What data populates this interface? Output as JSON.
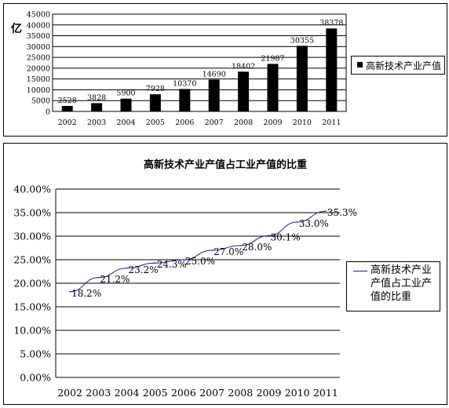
{
  "chart_data": [
    {
      "type": "bar",
      "title": "",
      "ylabel": "亿",
      "categories": [
        "2002",
        "2003",
        "2004",
        "2005",
        "2006",
        "2007",
        "2008",
        "2009",
        "2010",
        "2011"
      ],
      "series": [
        {
          "name": "高新技术产业产值",
          "values": [
            2528,
            3828,
            5900,
            7928,
            10370,
            14690,
            18402,
            21987,
            30355,
            38378
          ]
        }
      ],
      "ylim": [
        0,
        45000
      ],
      "yticks": [
        "0",
        "5000",
        "10000",
        "15000",
        "20000",
        "25000",
        "30000",
        "35000",
        "40000",
        "45000"
      ],
      "data_labels": [
        "2528",
        "3828",
        "5900",
        "7928",
        "10370",
        "14690",
        "18402",
        "21987",
        "30355",
        "38378"
      ],
      "grid": true,
      "legend": "right",
      "bar_color": "#000000"
    },
    {
      "type": "line",
      "title": "高新技术产业产值占工业产值的比重",
      "categories": [
        "2002",
        "2003",
        "2004",
        "2005",
        "2006",
        "2007",
        "2008",
        "2009",
        "2010",
        "2011"
      ],
      "series": [
        {
          "name": "高新技术产业产值占工业产值的比重",
          "values": [
            18.2,
            21.2,
            23.2,
            24.3,
            25.0,
            27.0,
            28.0,
            30.1,
            33.0,
            35.3
          ]
        }
      ],
      "ylim": [
        0,
        40
      ],
      "yticks": [
        "0.00%",
        "5.00%",
        "10.00%",
        "15.00%",
        "20.00%",
        "25.00%",
        "30.00%",
        "35.00%",
        "40.00%"
      ],
      "data_labels": [
        "18.2%",
        "21.2%",
        "23.2%",
        "24.3%",
        "25.0%",
        "27.0%",
        "28.0%",
        "30.1%",
        "33.0%",
        "35.3%"
      ],
      "legend_lines": [
        "高新技术产业",
        "产值占工业产",
        "值的比重"
      ],
      "grid": true,
      "legend": "right",
      "line_color": "#1a1a8c"
    }
  ]
}
